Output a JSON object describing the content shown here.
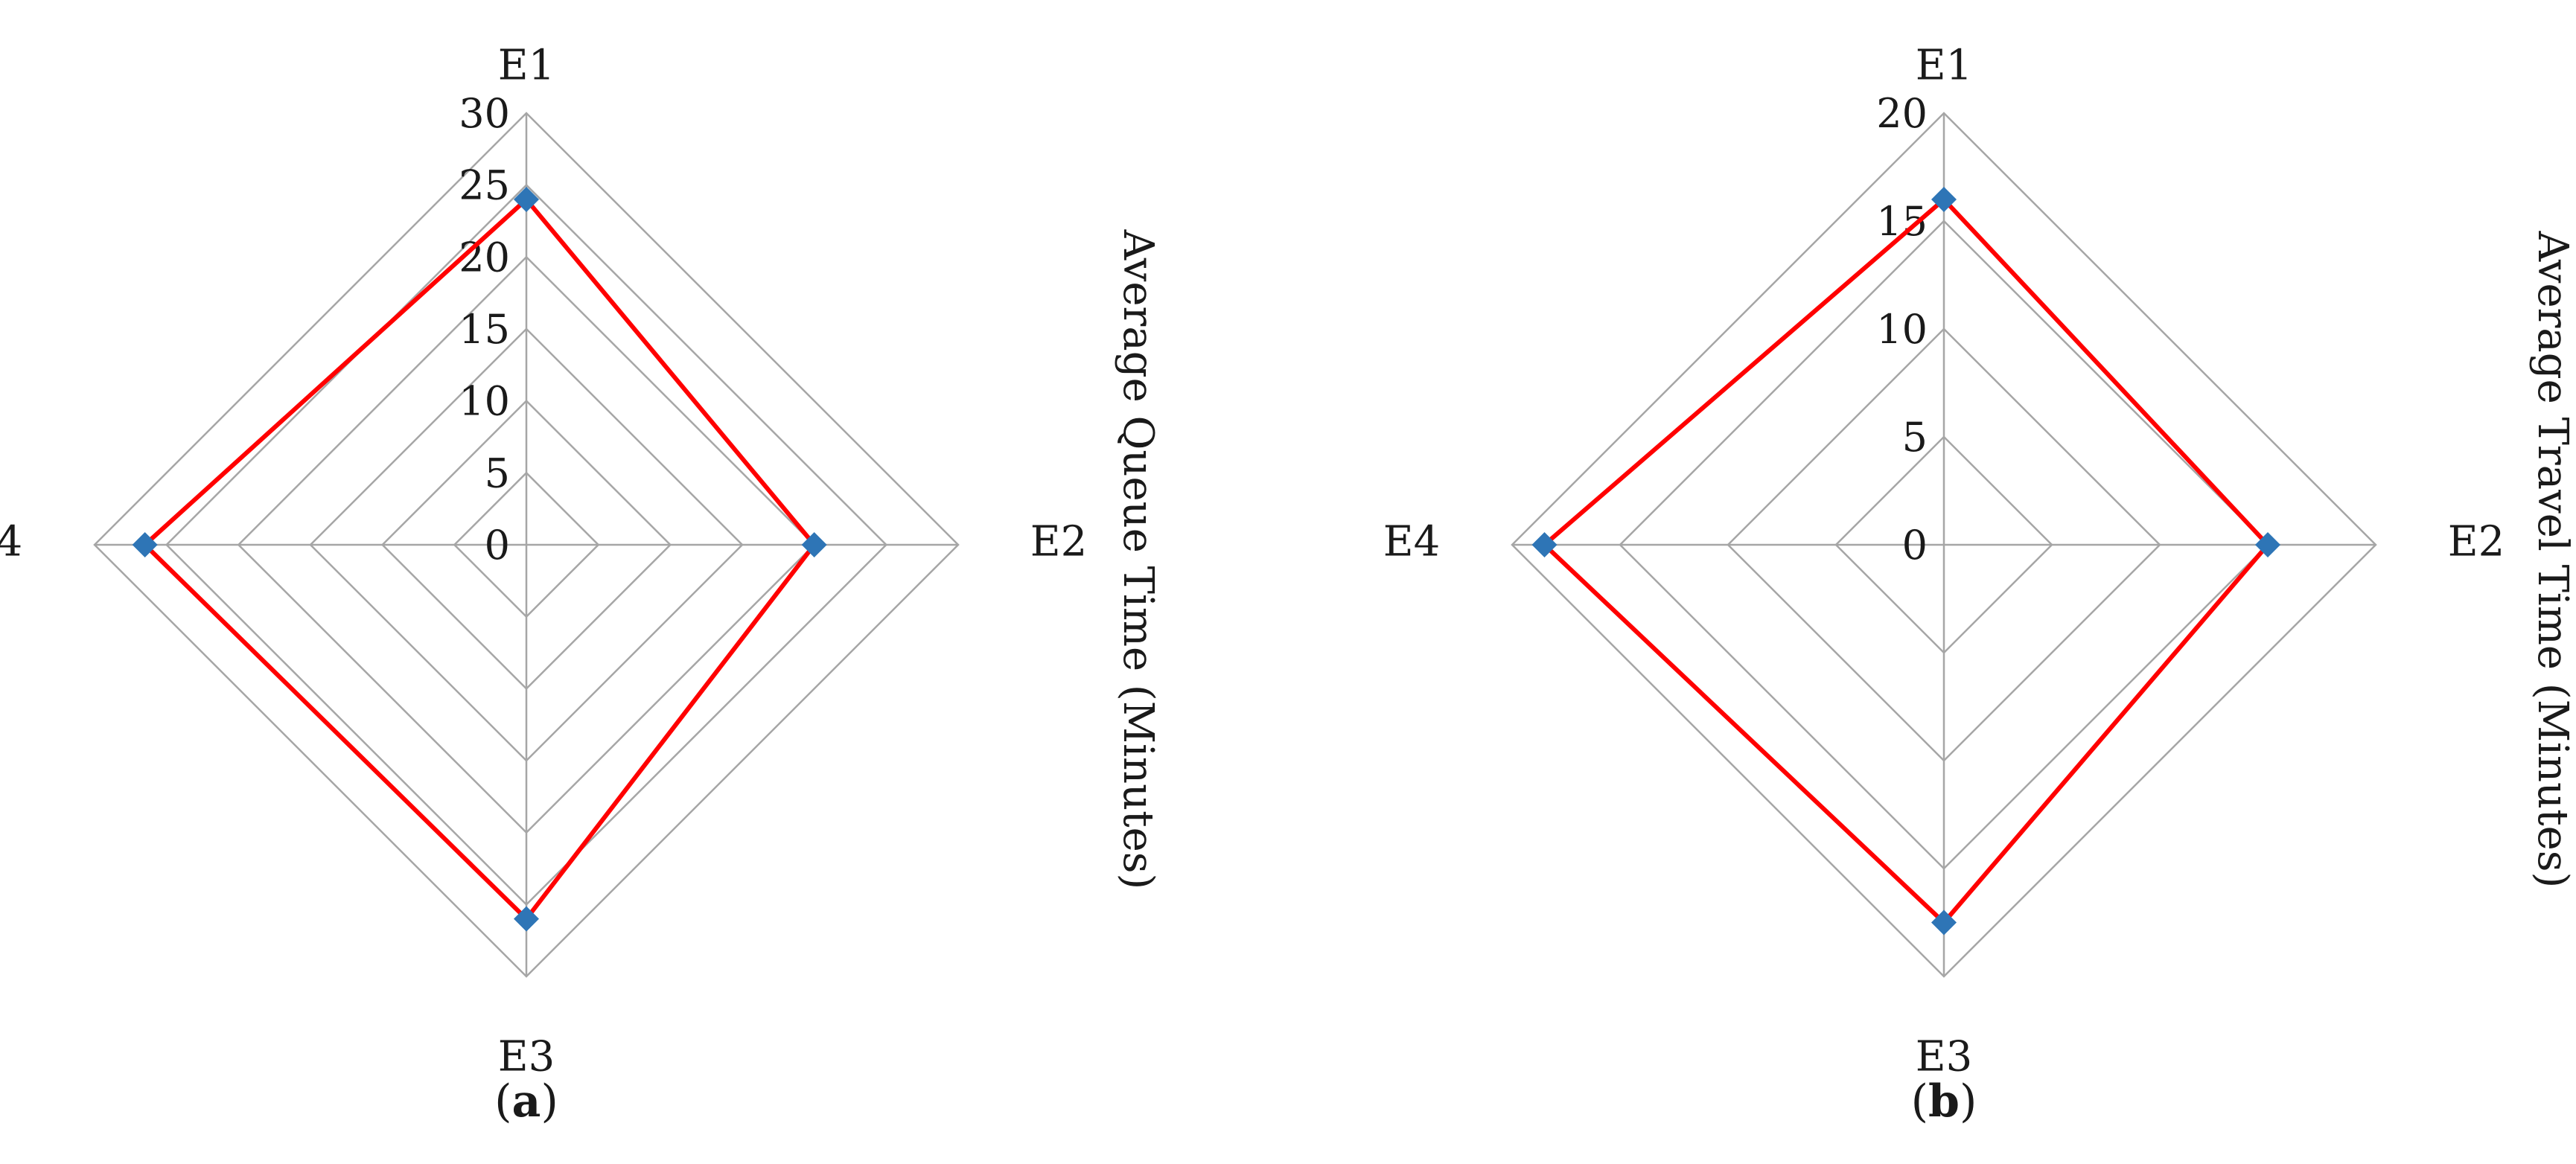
{
  "chart_data": [
    {
      "type": "radar",
      "panel_label": "a",
      "ylabel": "Average Queue Time (Minutes)",
      "categories": [
        "E1",
        "E2",
        "E3",
        "E4"
      ],
      "rmin": 0,
      "rmax": 30,
      "ticks": [
        0,
        5,
        10,
        15,
        20,
        25,
        30
      ],
      "gridlines": true,
      "series": [
        {
          "values": [
            24,
            20,
            26,
            26.5
          ],
          "line_color": "#ff0000",
          "marker_color": "#2e75b6"
        }
      ]
    },
    {
      "type": "radar",
      "panel_label": "b",
      "ylabel": "Average Travel Time (Minutes)",
      "categories": [
        "E1",
        "E2",
        "E3",
        "E4"
      ],
      "rmin": 0,
      "rmax": 20,
      "ticks": [
        0,
        5,
        10,
        15,
        20
      ],
      "gridlines": true,
      "series": [
        {
          "values": [
            16,
            15,
            17.5,
            18.5
          ],
          "line_color": "#ff0000",
          "marker_color": "#2e75b6"
        }
      ]
    }
  ],
  "colors": {
    "grid": "#a6a6a6",
    "series_line": "#ff0000",
    "marker": "#2e75b6"
  }
}
